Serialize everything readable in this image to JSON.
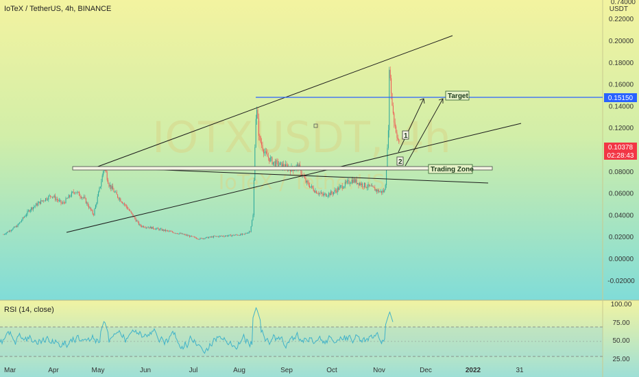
{
  "header": {
    "title": "IoTeX / TetherUS, 4h, BINANCE"
  },
  "watermark": {
    "symbol": "IOTXUSDT, 4h",
    "name": "IoTeX / TetherUS"
  },
  "price_axis": {
    "currency": "USDT",
    "top_label": "0.74000"
  },
  "price_tags": {
    "target": {
      "value": "0.15150",
      "color": "#2962ff"
    },
    "last": {
      "value": "0.10378",
      "countdown": "02:28:43",
      "color": "#f23645"
    }
  },
  "annotations": {
    "target": "Target",
    "trading_zone": "Trading Zone",
    "wave1": "1",
    "wave2": "2"
  },
  "rsi": {
    "label": "RSI (14, close)",
    "ticks": [
      "100.00",
      "75.00",
      "50.00",
      "25.00"
    ],
    "upper": 70,
    "lower": 30,
    "color": "#3fb2c9"
  },
  "time_axis": [
    "Mar",
    "Apr",
    "May",
    "Jun",
    "Jul",
    "Aug",
    "Sep",
    "Oct",
    "Nov",
    "Dec",
    "2022",
    "31"
  ],
  "chart_data": {
    "type": "candlestick",
    "title": "IoTeX / TetherUS, 4h, BINANCE",
    "ylim": [
      -0.03,
      0.23
    ],
    "yticks": [
      "0.22000",
      "0.20000",
      "0.18000",
      "0.16000",
      "0.14000",
      "0.12000",
      "0.10000",
      "0.08000",
      "0.06000",
      "0.04000",
      "0.02000",
      "0.00000",
      "-0.02000"
    ],
    "colors": {
      "up": "#26a69a",
      "down": "#ef5350"
    },
    "series": [
      {
        "name": "price",
        "points": [
          [
            "2021-03-01",
            0.022
          ],
          [
            "2021-03-10",
            0.03
          ],
          [
            "2021-03-18",
            0.045
          ],
          [
            "2021-03-25",
            0.052
          ],
          [
            "2021-04-01",
            0.058
          ],
          [
            "2021-04-08",
            0.05
          ],
          [
            "2021-04-16",
            0.062
          ],
          [
            "2021-04-22",
            0.055
          ],
          [
            "2021-04-28",
            0.04
          ],
          [
            "2021-05-03",
            0.07
          ],
          [
            "2021-05-05",
            0.085
          ],
          [
            "2021-05-08",
            0.068
          ],
          [
            "2021-05-13",
            0.058
          ],
          [
            "2021-05-19",
            0.048
          ],
          [
            "2021-05-24",
            0.038
          ],
          [
            "2021-05-28",
            0.03
          ],
          [
            "2021-06-05",
            0.028
          ],
          [
            "2021-06-15",
            0.025
          ],
          [
            "2021-06-25",
            0.022
          ],
          [
            "2021-07-05",
            0.018
          ],
          [
            "2021-07-15",
            0.02
          ],
          [
            "2021-07-25",
            0.021
          ],
          [
            "2021-08-03",
            0.022
          ],
          [
            "2021-08-07",
            0.025
          ],
          [
            "2021-08-09",
            0.04
          ],
          [
            "2021-08-10",
            0.1
          ],
          [
            "2021-08-11",
            0.14
          ],
          [
            "2021-08-13",
            0.11
          ],
          [
            "2021-08-17",
            0.095
          ],
          [
            "2021-08-22",
            0.088
          ],
          [
            "2021-08-28",
            0.085
          ],
          [
            "2021-09-03",
            0.082
          ],
          [
            "2021-09-07",
            0.085
          ],
          [
            "2021-09-12",
            0.07
          ],
          [
            "2021-09-18",
            0.062
          ],
          [
            "2021-09-23",
            0.058
          ],
          [
            "2021-09-29",
            0.06
          ],
          [
            "2021-10-05",
            0.066
          ],
          [
            "2021-10-12",
            0.072
          ],
          [
            "2021-10-18",
            0.068
          ],
          [
            "2021-10-24",
            0.065
          ],
          [
            "2021-10-30",
            0.061
          ],
          [
            "2021-11-02",
            0.062
          ],
          [
            "2021-11-04",
            0.11
          ],
          [
            "2021-11-05",
            0.185
          ],
          [
            "2021-11-06",
            0.15
          ],
          [
            "2021-11-08",
            0.125
          ],
          [
            "2021-11-10",
            0.112
          ],
          [
            "2021-11-11",
            0.104
          ]
        ]
      }
    ],
    "levels": [
      {
        "name": "Target",
        "value": 0.1515
      },
      {
        "name": "Trading Zone",
        "value": 0.083
      }
    ]
  }
}
